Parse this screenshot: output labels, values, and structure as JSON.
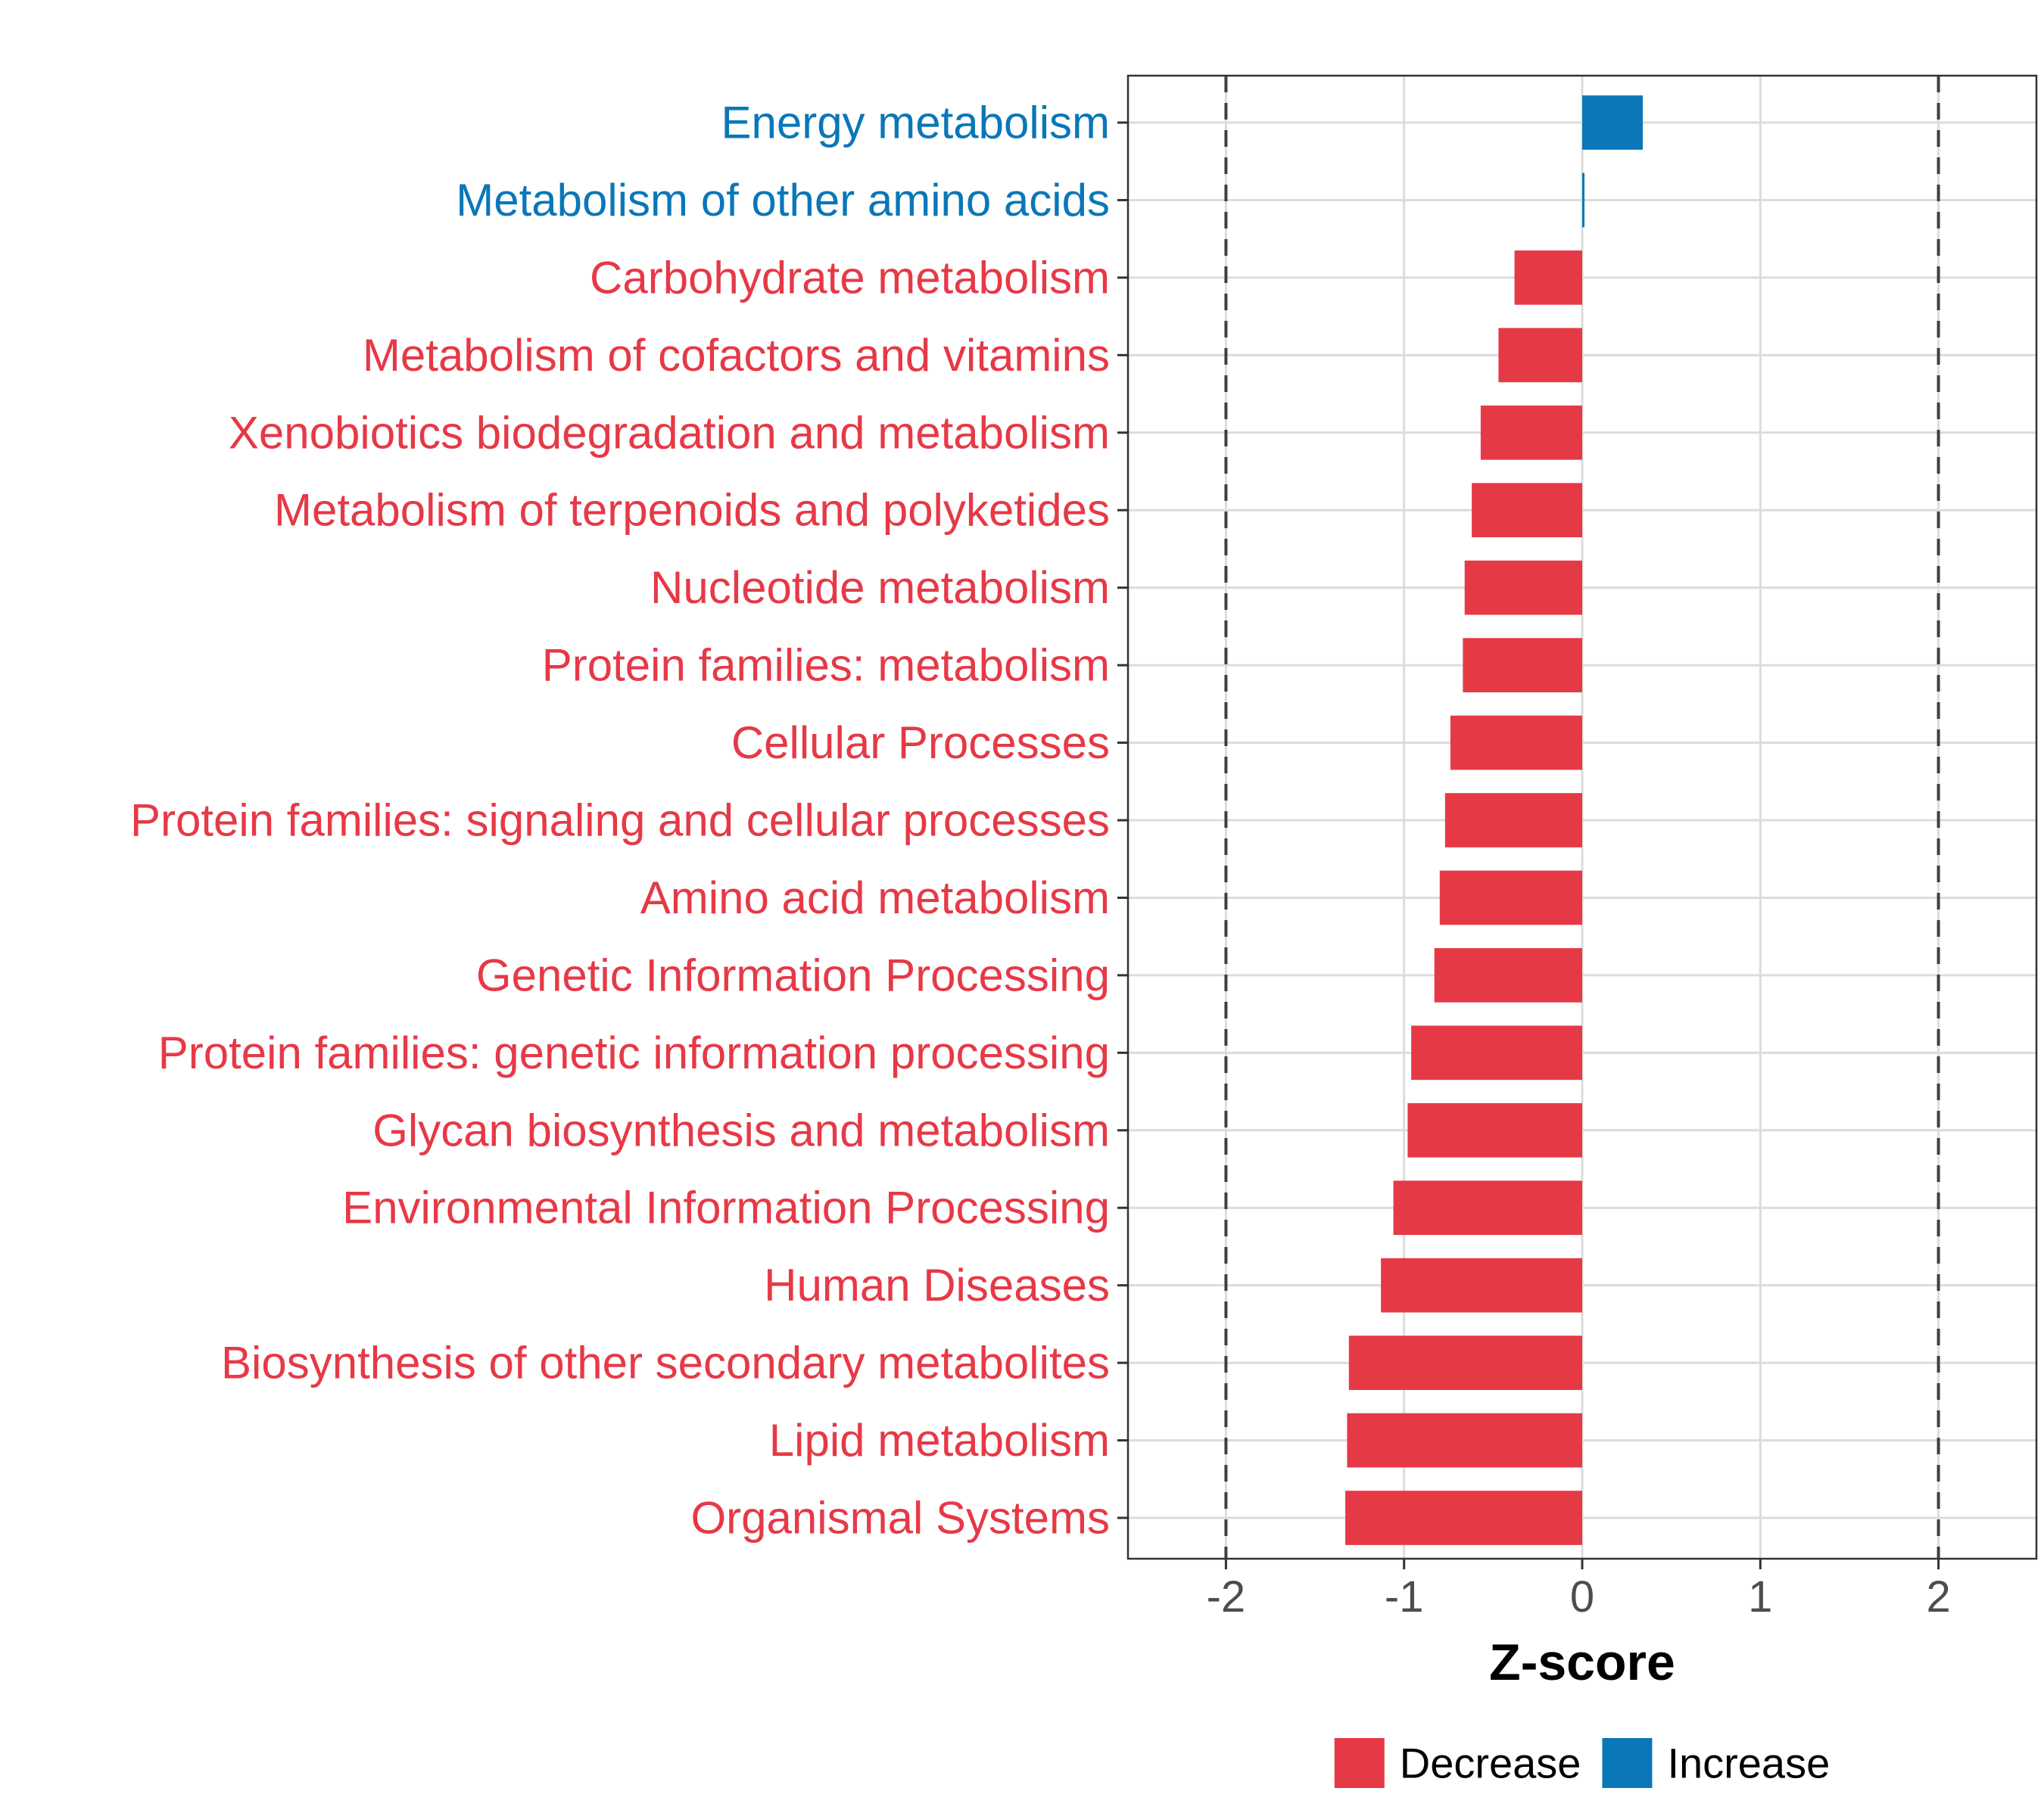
{
  "chart_data": {
    "type": "bar",
    "orientation": "horizontal",
    "xlabel": "Z-score",
    "xlim": [
      -2.55,
      2.55
    ],
    "xticks": [
      -2,
      -1,
      0,
      1,
      2
    ],
    "xtick_labels": [
      "-2",
      "-1",
      "0",
      "1",
      "2"
    ],
    "reference_lines": [
      -2,
      2
    ],
    "grid": true,
    "colors": {
      "Decrease": "#E63946",
      "Increase": "#0A77B8"
    },
    "categories": [
      "Energy metabolism",
      "Metabolism of other amino acids",
      "Carbohydrate metabolism",
      "Metabolism of cofactors and vitamins",
      "Xenobiotics biodegradation and metabolism",
      "Metabolism of terpenoids and polyketides",
      "Nucleotide metabolism",
      "Protein families: metabolism",
      "Cellular Processes",
      "Protein families: signaling and cellular processes",
      "Amino acid metabolism",
      "Genetic Information Processing",
      "Protein families: genetic information processing",
      "Glycan biosynthesis and metabolism",
      "Environmental Information Processing",
      "Human Diseases",
      "Biosynthesis of other secondary metabolites",
      "Lipid metabolism",
      "Organismal Systems"
    ],
    "values": [
      0.34,
      0.01,
      -0.38,
      -0.47,
      -0.57,
      -0.62,
      -0.66,
      -0.67,
      -0.74,
      -0.77,
      -0.8,
      -0.83,
      -0.96,
      -0.98,
      -1.06,
      -1.13,
      -1.31,
      -1.32,
      -1.33
    ],
    "groups": [
      "Increase",
      "Increase",
      "Decrease",
      "Decrease",
      "Decrease",
      "Decrease",
      "Decrease",
      "Decrease",
      "Decrease",
      "Decrease",
      "Decrease",
      "Decrease",
      "Decrease",
      "Decrease",
      "Decrease",
      "Decrease",
      "Decrease",
      "Decrease",
      "Decrease"
    ],
    "legend": {
      "position": "bottom",
      "items": [
        {
          "label": "Decrease",
          "color": "#E63946"
        },
        {
          "label": "Increase",
          "color": "#0A77B8"
        }
      ]
    }
  }
}
